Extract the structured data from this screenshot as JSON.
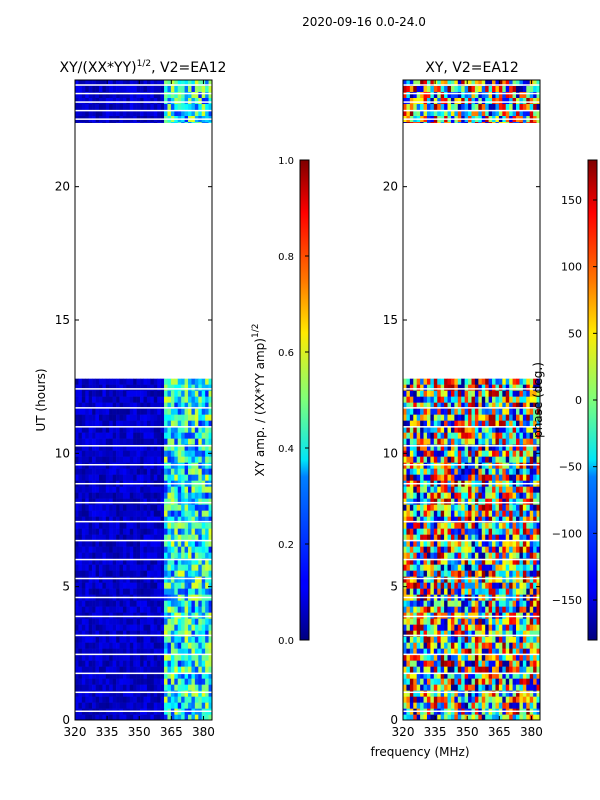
{
  "figure": {
    "suptitle": "2020-09-16 0.0-24.0",
    "shared_xlabel": "frequency (MHz)"
  },
  "chart_data": [
    {
      "type": "heatmap",
      "title_main": "XY/(XX*YY)",
      "title_sup": "1/2",
      "title_tail": ", V2=EA12",
      "xlabel": "frequency (MHz)",
      "ylabel": "UT (hours)",
      "xlim": [
        320,
        384
      ],
      "ylim": [
        0,
        24
      ],
      "xticks": [
        320,
        335,
        350,
        365,
        380
      ],
      "yticks": [
        0,
        5,
        10,
        15,
        20
      ],
      "data_coverage_hours": [
        [
          0,
          12.8
        ],
        [
          22.4,
          24
        ]
      ],
      "colormap": "jet",
      "colorbar": {
        "label_main": "XY amp. / (XX*YY amp)",
        "label_sup": "1/2",
        "range": [
          0.0,
          1.0
        ],
        "ticks": [
          "0.0",
          "0.2",
          "0.4",
          "0.6",
          "0.8",
          "1.0"
        ]
      }
    },
    {
      "type": "heatmap",
      "title_main": "XY, V2=EA12",
      "xlabel": "frequency (MHz)",
      "ylabel": "",
      "xlim": [
        320,
        384
      ],
      "ylim": [
        0,
        24
      ],
      "xticks": [
        320,
        335,
        350,
        365,
        380
      ],
      "yticks": [
        0,
        5,
        10,
        15,
        20
      ],
      "data_coverage_hours": [
        [
          0,
          12.8
        ],
        [
          22.4,
          24
        ]
      ],
      "colormap": "jet",
      "colorbar": {
        "label": "phase (deg.)",
        "range": [
          -180,
          180
        ],
        "ticks": [
          "−150",
          "−100",
          "−50",
          "0",
          "50",
          "100",
          "150"
        ],
        "tick_values": [
          -150,
          -100,
          -50,
          0,
          50,
          100,
          150
        ]
      }
    }
  ]
}
